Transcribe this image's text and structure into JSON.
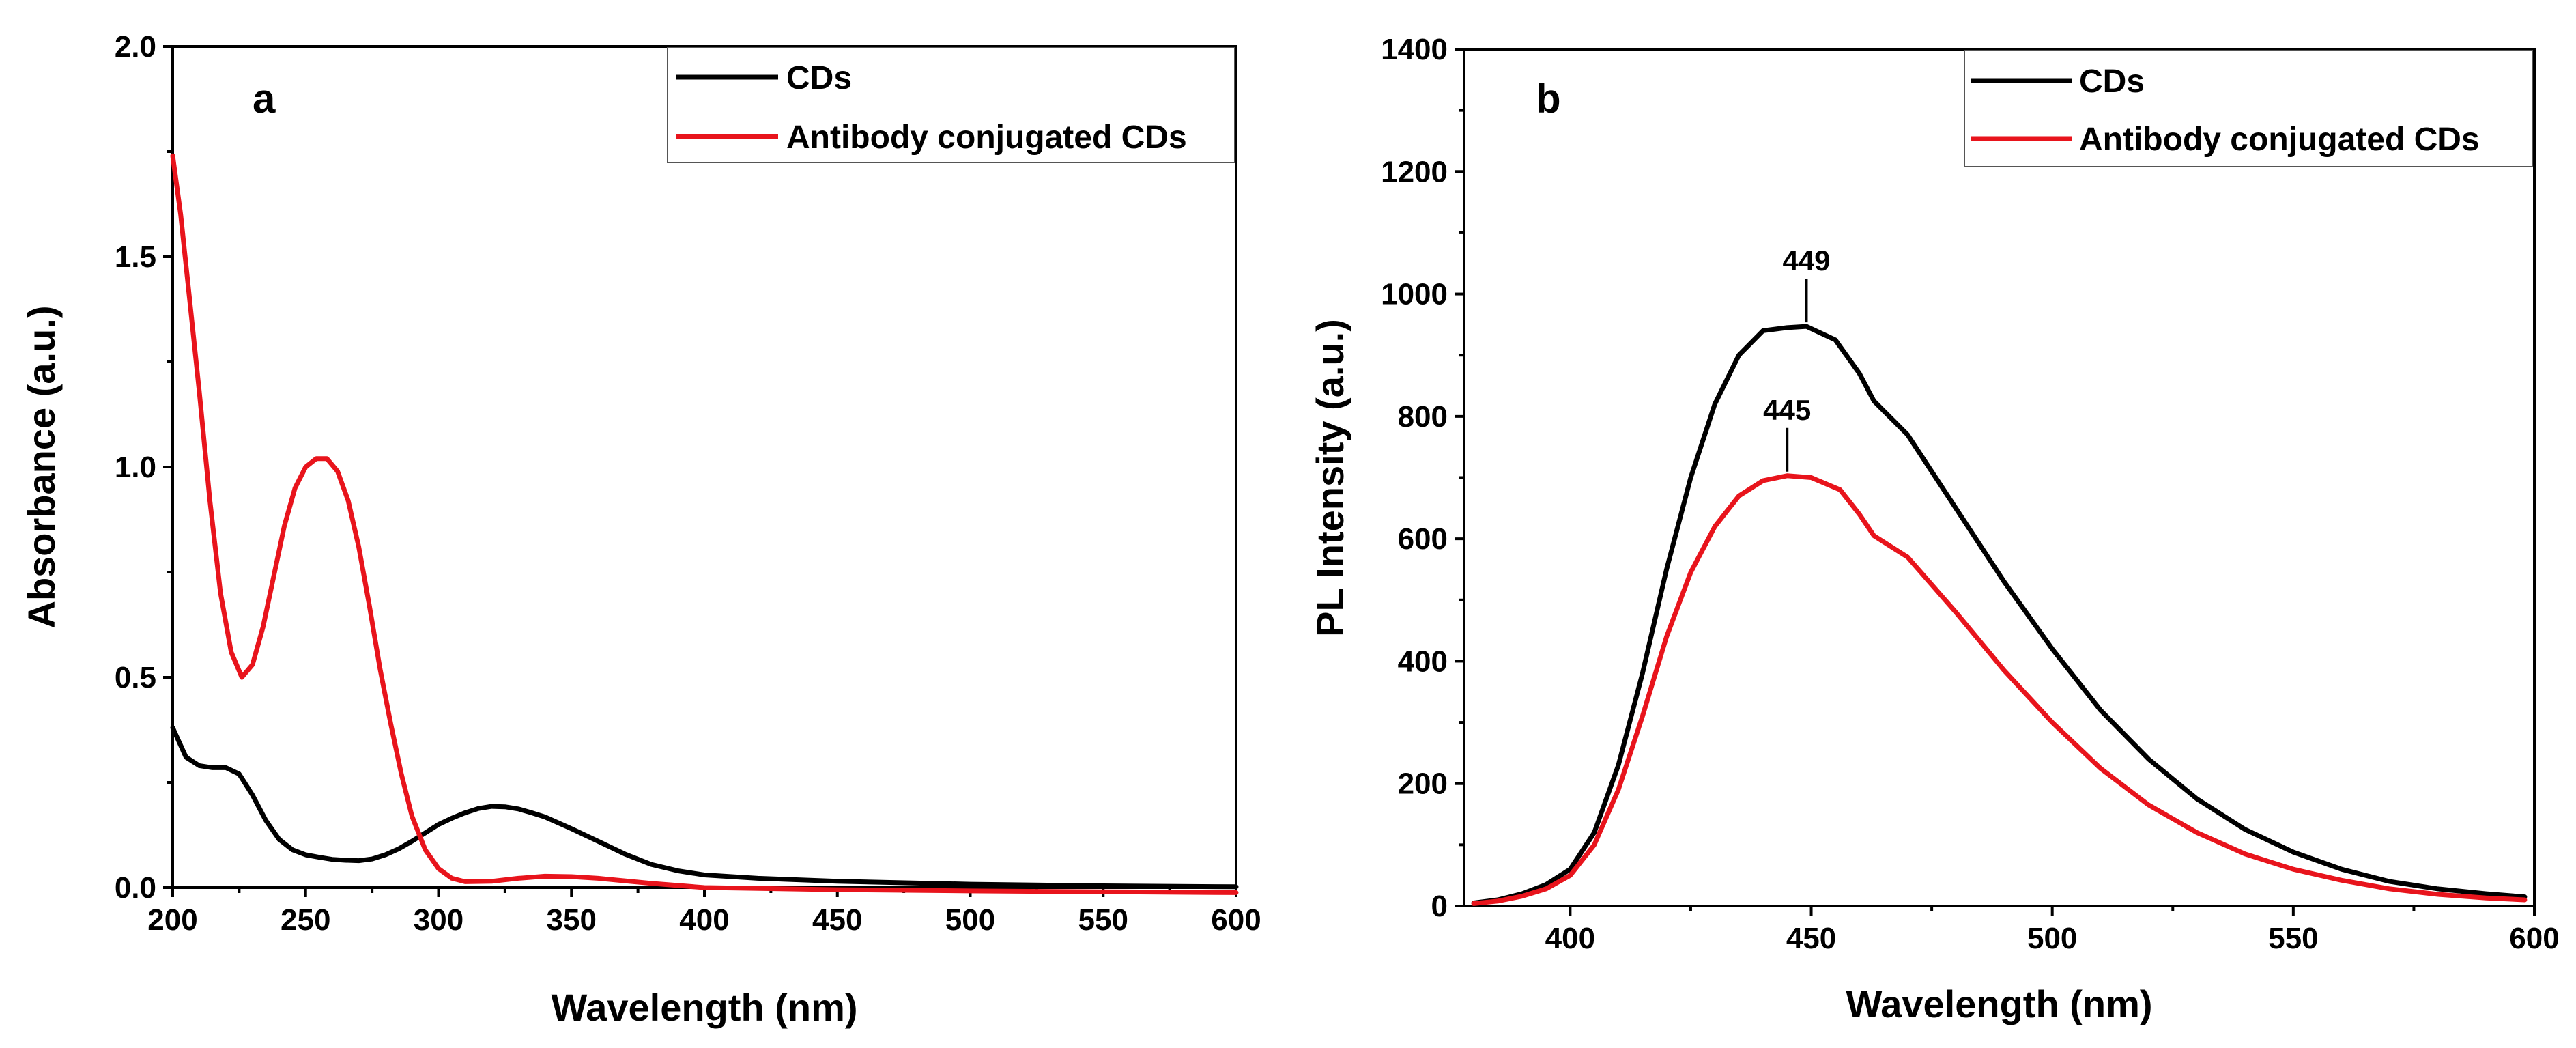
{
  "chart_data": [
    {
      "type": "line",
      "panel_label": "a",
      "xlabel": "Wavelength (nm)",
      "ylabel": "Absorbance (a.u.)",
      "xlim": [
        200,
        600
      ],
      "ylim": [
        0,
        2.0
      ],
      "xticks": [
        200,
        250,
        300,
        350,
        400,
        450,
        500,
        550,
        600
      ],
      "xtick_labels": [
        "200",
        "250",
        "300",
        "350",
        "400",
        "450",
        "500",
        "550",
        "600"
      ],
      "yticks": [
        0,
        0.5,
        1.0,
        1.5,
        2.0
      ],
      "ytick_labels": [
        "0.0",
        "0.5",
        "1.0",
        "1.5",
        "2.0"
      ],
      "legend_position": "top-right",
      "series": [
        {
          "name": "CDs",
          "color": "#000000",
          "x": [
            200,
            205,
            210,
            215,
            220,
            225,
            230,
            235,
            240,
            245,
            250,
            255,
            260,
            265,
            270,
            275,
            280,
            285,
            290,
            295,
            300,
            305,
            310,
            315,
            320,
            325,
            330,
            335,
            340,
            350,
            360,
            370,
            380,
            390,
            400,
            420,
            450,
            500,
            550,
            600
          ],
          "y": [
            0.38,
            0.31,
            0.29,
            0.285,
            0.285,
            0.27,
            0.22,
            0.16,
            0.115,
            0.09,
            0.078,
            0.072,
            0.067,
            0.065,
            0.064,
            0.068,
            0.078,
            0.092,
            0.11,
            0.13,
            0.15,
            0.165,
            0.178,
            0.188,
            0.193,
            0.192,
            0.187,
            0.178,
            0.168,
            0.14,
            0.11,
            0.08,
            0.055,
            0.04,
            0.03,
            0.022,
            0.015,
            0.008,
            0.004,
            0.002
          ]
        },
        {
          "name": "Antibody conjugated CDs",
          "color": "#e8141c",
          "x": [
            200,
            203,
            206,
            210,
            214,
            218,
            222,
            226,
            230,
            234,
            238,
            242,
            246,
            250,
            254,
            258,
            262,
            266,
            270,
            274,
            278,
            282,
            286,
            290,
            295,
            300,
            305,
            310,
            320,
            330,
            340,
            350,
            360,
            370,
            380,
            400,
            450,
            500,
            550,
            600
          ],
          "y": [
            1.74,
            1.6,
            1.42,
            1.18,
            0.92,
            0.7,
            0.56,
            0.5,
            0.53,
            0.62,
            0.74,
            0.86,
            0.95,
            1.0,
            1.02,
            1.02,
            0.99,
            0.92,
            0.81,
            0.67,
            0.52,
            0.39,
            0.27,
            0.17,
            0.09,
            0.045,
            0.022,
            0.014,
            0.015,
            0.022,
            0.027,
            0.026,
            0.022,
            0.016,
            0.01,
            0.0,
            -0.005,
            -0.008,
            -0.01,
            -0.012
          ]
        }
      ]
    },
    {
      "type": "line",
      "panel_label": "b",
      "xlabel": "Wavelength (nm)",
      "ylabel": "PL Intensity (a.u.)",
      "xlim": [
        378,
        600
      ],
      "ylim": [
        0,
        1400
      ],
      "xticks": [
        400,
        450,
        500,
        550,
        600
      ],
      "xtick_labels": [
        "400",
        "450",
        "500",
        "550",
        "600"
      ],
      "yticks": [
        0,
        200,
        400,
        600,
        800,
        1000,
        1200,
        1400
      ],
      "ytick_labels": [
        "0",
        "200",
        "400",
        "600",
        "800",
        "1000",
        "1200",
        "1400"
      ],
      "legend_position": "top-right",
      "annotations": [
        {
          "text": "449",
          "x": 449,
          "y": 947
        },
        {
          "text": "445",
          "x": 445,
          "y": 703
        }
      ],
      "series": [
        {
          "name": "CDs",
          "color": "#000000",
          "x": [
            380,
            385,
            390,
            395,
            400,
            405,
            410,
            415,
            420,
            425,
            430,
            435,
            440,
            445,
            449,
            455,
            460,
            463,
            470,
            480,
            490,
            500,
            510,
            520,
            530,
            540,
            550,
            560,
            570,
            580,
            590,
            598
          ],
          "y": [
            5,
            10,
            20,
            35,
            60,
            120,
            230,
            380,
            550,
            700,
            820,
            900,
            940,
            945,
            947,
            925,
            870,
            825,
            770,
            650,
            530,
            420,
            320,
            240,
            175,
            125,
            88,
            60,
            40,
            28,
            20,
            15
          ]
        },
        {
          "name": "Antibody conjugated CDs",
          "color": "#e8141c",
          "x": [
            380,
            385,
            390,
            395,
            400,
            405,
            410,
            415,
            420,
            425,
            430,
            435,
            440,
            445,
            450,
            456,
            460,
            463,
            470,
            480,
            490,
            500,
            510,
            520,
            530,
            540,
            550,
            560,
            570,
            580,
            590,
            598
          ],
          "y": [
            4,
            8,
            16,
            28,
            50,
            100,
            190,
            310,
            440,
            545,
            620,
            670,
            695,
            703,
            700,
            680,
            640,
            605,
            570,
            480,
            385,
            300,
            225,
            165,
            120,
            85,
            60,
            42,
            28,
            19,
            13,
            10
          ]
        }
      ]
    }
  ]
}
